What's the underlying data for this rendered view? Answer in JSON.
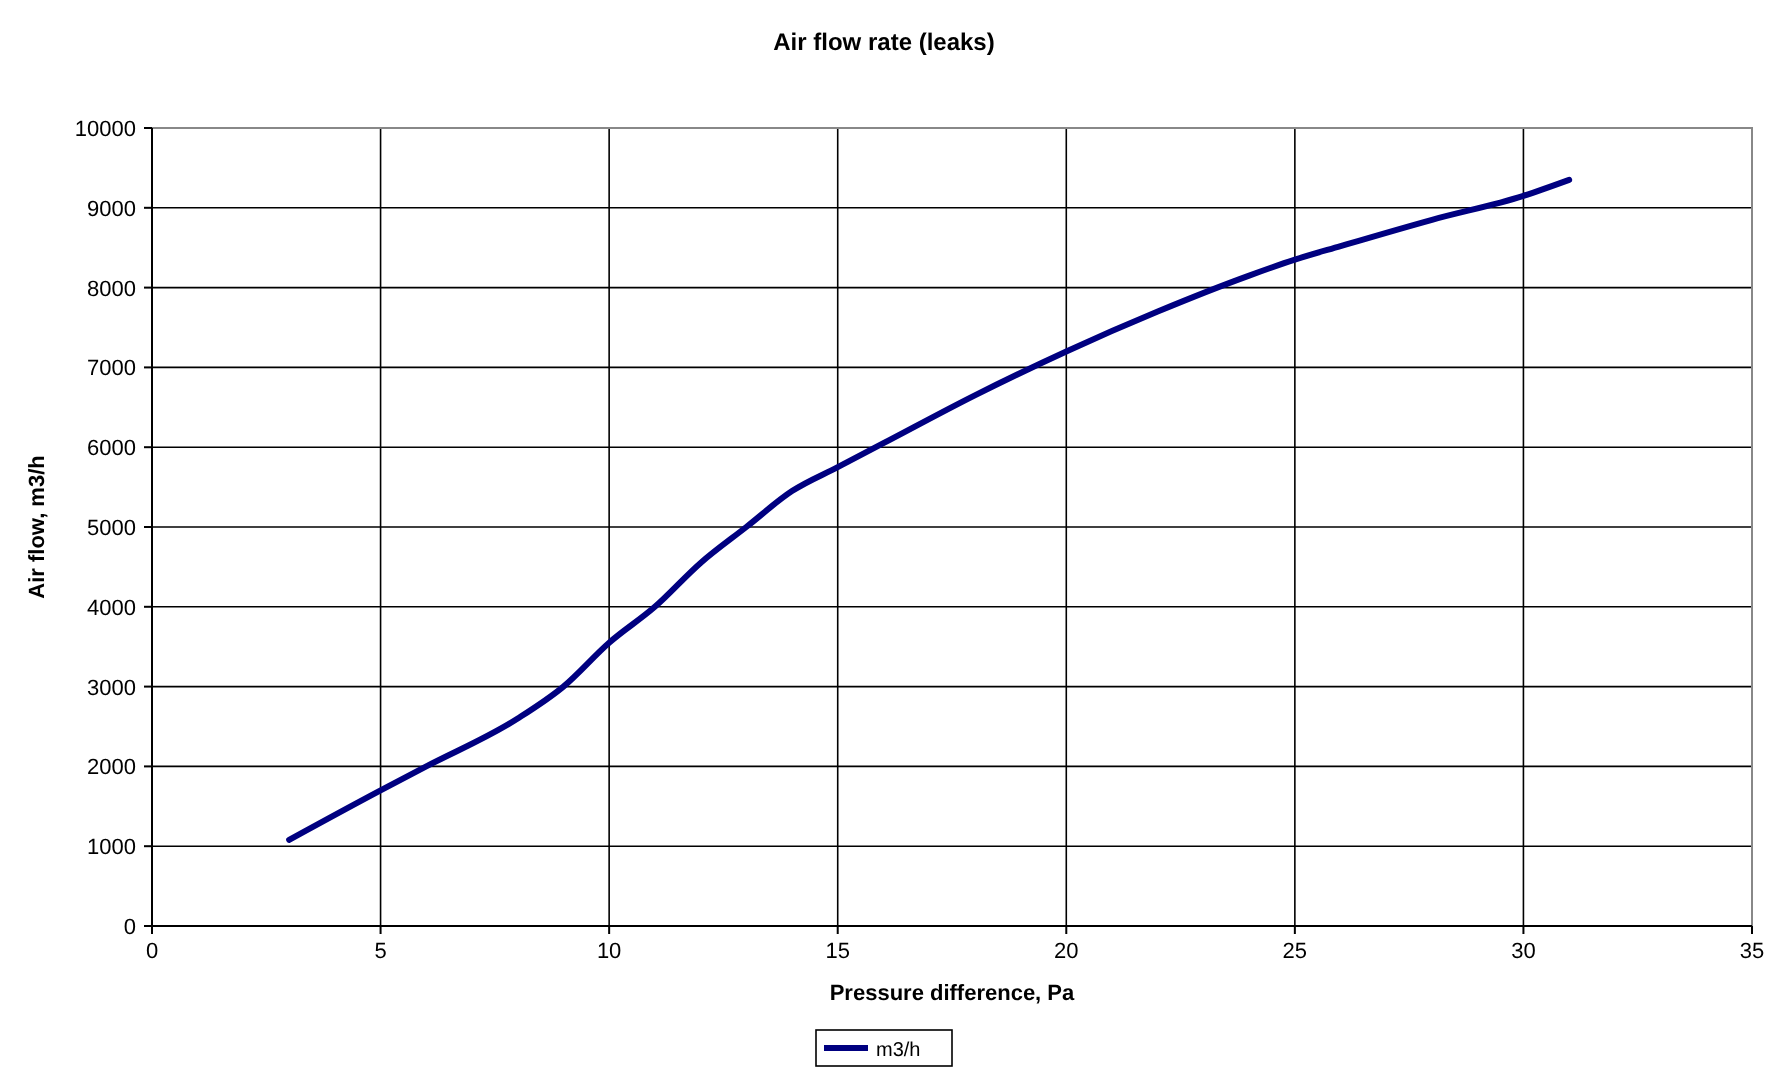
{
  "chart_data": {
    "type": "line",
    "title": "Air flow rate (leaks)",
    "xlabel": "Pressure difference, Pa",
    "ylabel": "Air flow, m3/h",
    "xlim": [
      0,
      35
    ],
    "xticks": [
      0,
      5,
      10,
      15,
      20,
      25,
      30,
      35
    ],
    "ylim": [
      0,
      10000
    ],
    "yticks": [
      0,
      1000,
      2000,
      3000,
      4000,
      5000,
      6000,
      7000,
      8000,
      9000,
      10000
    ],
    "grid": true,
    "legend": "bottom",
    "line_style": "solid",
    "marker": "none",
    "x": [
      3,
      5,
      6,
      8,
      9,
      10,
      11,
      12,
      13,
      14,
      15,
      16,
      18,
      20,
      22,
      24,
      25,
      26,
      28,
      30,
      31
    ],
    "series": [
      {
        "name": "m3/h",
        "color": "#000080",
        "values": [
          1080,
          1700,
          2000,
          2600,
          3000,
          3550,
          4000,
          4550,
          5000,
          5450,
          5750,
          6050,
          6650,
          7200,
          7700,
          8150,
          8350,
          8520,
          8850,
          9150,
          9350
        ]
      }
    ]
  }
}
